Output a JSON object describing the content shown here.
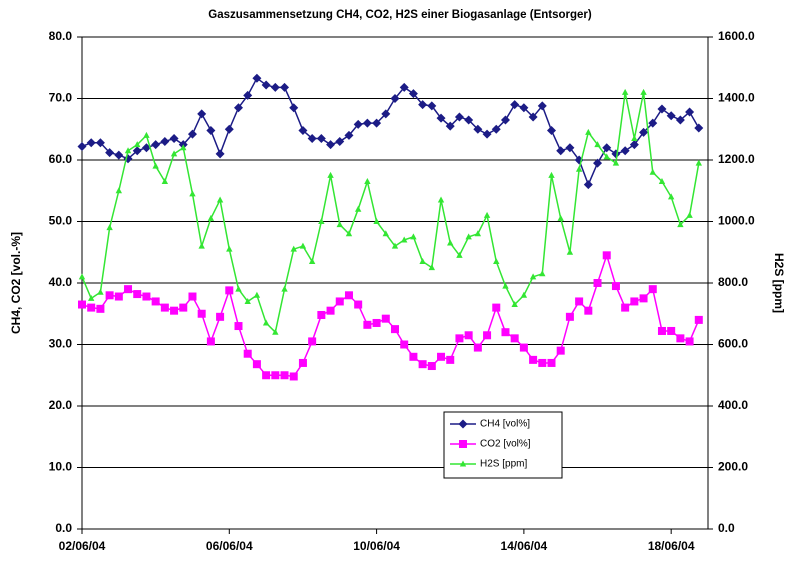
{
  "chart_data": {
    "type": "line",
    "title": "Gaszusammensetzung CH4, CO2, H2S einer Biogasanlage (Entsorger)",
    "ylabel": "CH4, CO2 [vol.-%]",
    "y2label": "H2S [ppm]",
    "x": [
      0,
      0.25,
      0.5,
      0.75,
      1,
      1.25,
      1.5,
      1.75,
      2,
      2.25,
      2.5,
      2.75,
      3,
      3.25,
      3.5,
      3.75,
      4,
      4.25,
      4.5,
      4.75,
      5,
      5.25,
      5.5,
      5.75,
      6,
      6.25,
      6.5,
      6.75,
      7,
      7.25,
      7.5,
      7.75,
      8,
      8.25,
      8.5,
      8.75,
      9,
      9.25,
      9.5,
      9.75,
      10,
      10.25,
      10.5,
      10.75,
      11,
      11.25,
      11.5,
      11.75,
      12,
      12.25,
      12.5,
      12.75,
      13,
      13.25,
      13.5,
      13.75,
      14,
      14.25,
      14.5,
      14.75,
      15,
      15.25,
      15.5,
      15.75,
      16,
      16.25,
      16.5,
      16.75
    ],
    "xlim": [
      0,
      17
    ],
    "xticks": [
      {
        "value": 0,
        "label": "02/06/04"
      },
      {
        "value": 4,
        "label": "06/06/04"
      },
      {
        "value": 8,
        "label": "10/06/04"
      },
      {
        "value": 12,
        "label": "14/06/04"
      },
      {
        "value": 16,
        "label": "18/06/04"
      }
    ],
    "ylim": [
      0,
      80
    ],
    "yticks": [
      {
        "value": 0,
        "label": "0.0"
      },
      {
        "value": 10,
        "label": "10.0"
      },
      {
        "value": 20,
        "label": "20.0"
      },
      {
        "value": 30,
        "label": "30.0"
      },
      {
        "value": 40,
        "label": "40.0"
      },
      {
        "value": 50,
        "label": "50.0"
      },
      {
        "value": 60,
        "label": "60.0"
      },
      {
        "value": 70,
        "label": "70.0"
      },
      {
        "value": 80,
        "label": "80.0"
      }
    ],
    "y2lim": [
      0,
      1600
    ],
    "y2ticks": [
      {
        "value": 0,
        "label": "0.0"
      },
      {
        "value": 200,
        "label": "200.0"
      },
      {
        "value": 400,
        "label": "400.0"
      },
      {
        "value": 600,
        "label": "600.0"
      },
      {
        "value": 800,
        "label": "800.0"
      },
      {
        "value": 1000,
        "label": "1000.0"
      },
      {
        "value": 1200,
        "label": "1200.0"
      },
      {
        "value": 1400,
        "label": "1400.0"
      },
      {
        "value": 1600,
        "label": "1600.0"
      }
    ],
    "grid": true,
    "series": [
      {
        "name": "CH4 [vol%]",
        "color": "#1c1c86",
        "marker": "diamond",
        "values": [
          62.2,
          62.8,
          62.8,
          61.2,
          60.8,
          60.2,
          61.5,
          62,
          62.5,
          63,
          63.5,
          62.5,
          64.2,
          67.5,
          64.8,
          61,
          65,
          68.5,
          70.5,
          73.3,
          72.2,
          71.8,
          71.8,
          68.5,
          64.8,
          63.5,
          63.5,
          62.5,
          63,
          64,
          65.8,
          66,
          66,
          67.5,
          70,
          71.8,
          70.8,
          69,
          68.8,
          66.8,
          65.5,
          67,
          66.5,
          65,
          64.2,
          65,
          66.5,
          69,
          68.5,
          67,
          68.8,
          64.8,
          61.5,
          62,
          60,
          56,
          59.5,
          62,
          61,
          61.5,
          62.5,
          64.5,
          66,
          68.3,
          67.2,
          66.5,
          67.8,
          65.2
        ]
      },
      {
        "name": "CO2 [vol%]",
        "color": "#ff00ff",
        "marker": "square",
        "values": [
          36.5,
          36,
          35.8,
          38,
          37.8,
          39,
          38.2,
          37.8,
          37,
          36,
          35.5,
          36,
          37.8,
          35,
          30.5,
          34.5,
          38.8,
          33,
          28.5,
          26.8,
          25,
          25,
          25,
          24.8,
          27,
          30.5,
          34.8,
          35.5,
          37,
          38,
          36.5,
          33.2,
          33.5,
          34.2,
          32.5,
          30,
          28,
          26.8,
          26.5,
          28,
          27.5,
          31,
          31.5,
          29.5,
          31.5,
          36,
          32,
          31,
          29.5,
          27.5,
          27,
          27,
          29,
          34.5,
          37,
          35.5,
          40,
          44.5,
          39.5,
          36,
          37,
          37.5,
          39,
          32.2,
          32.2,
          31,
          30.5,
          34
        ]
      },
      {
        "name": "H2S [ppm]",
        "color": "#33e633",
        "marker": "triangle",
        "axis": "y2",
        "values": [
          820,
          750,
          770,
          980,
          1100,
          1230,
          1250,
          1280,
          1180,
          1130,
          1220,
          1240,
          1090,
          920,
          1010,
          1070,
          910,
          780,
          740,
          760,
          670,
          640,
          780,
          910,
          920,
          870,
          1000,
          1150,
          990,
          960,
          1040,
          1130,
          1000,
          960,
          920,
          940,
          950,
          870,
          850,
          1070,
          930,
          890,
          950,
          960,
          1020,
          870,
          790,
          730,
          760,
          820,
          830,
          1150,
          1010,
          900,
          1170,
          1290,
          1250,
          1210,
          1190,
          1420,
          1270,
          1420,
          1160,
          1130,
          1080,
          990,
          1020,
          1190
        ]
      }
    ]
  }
}
